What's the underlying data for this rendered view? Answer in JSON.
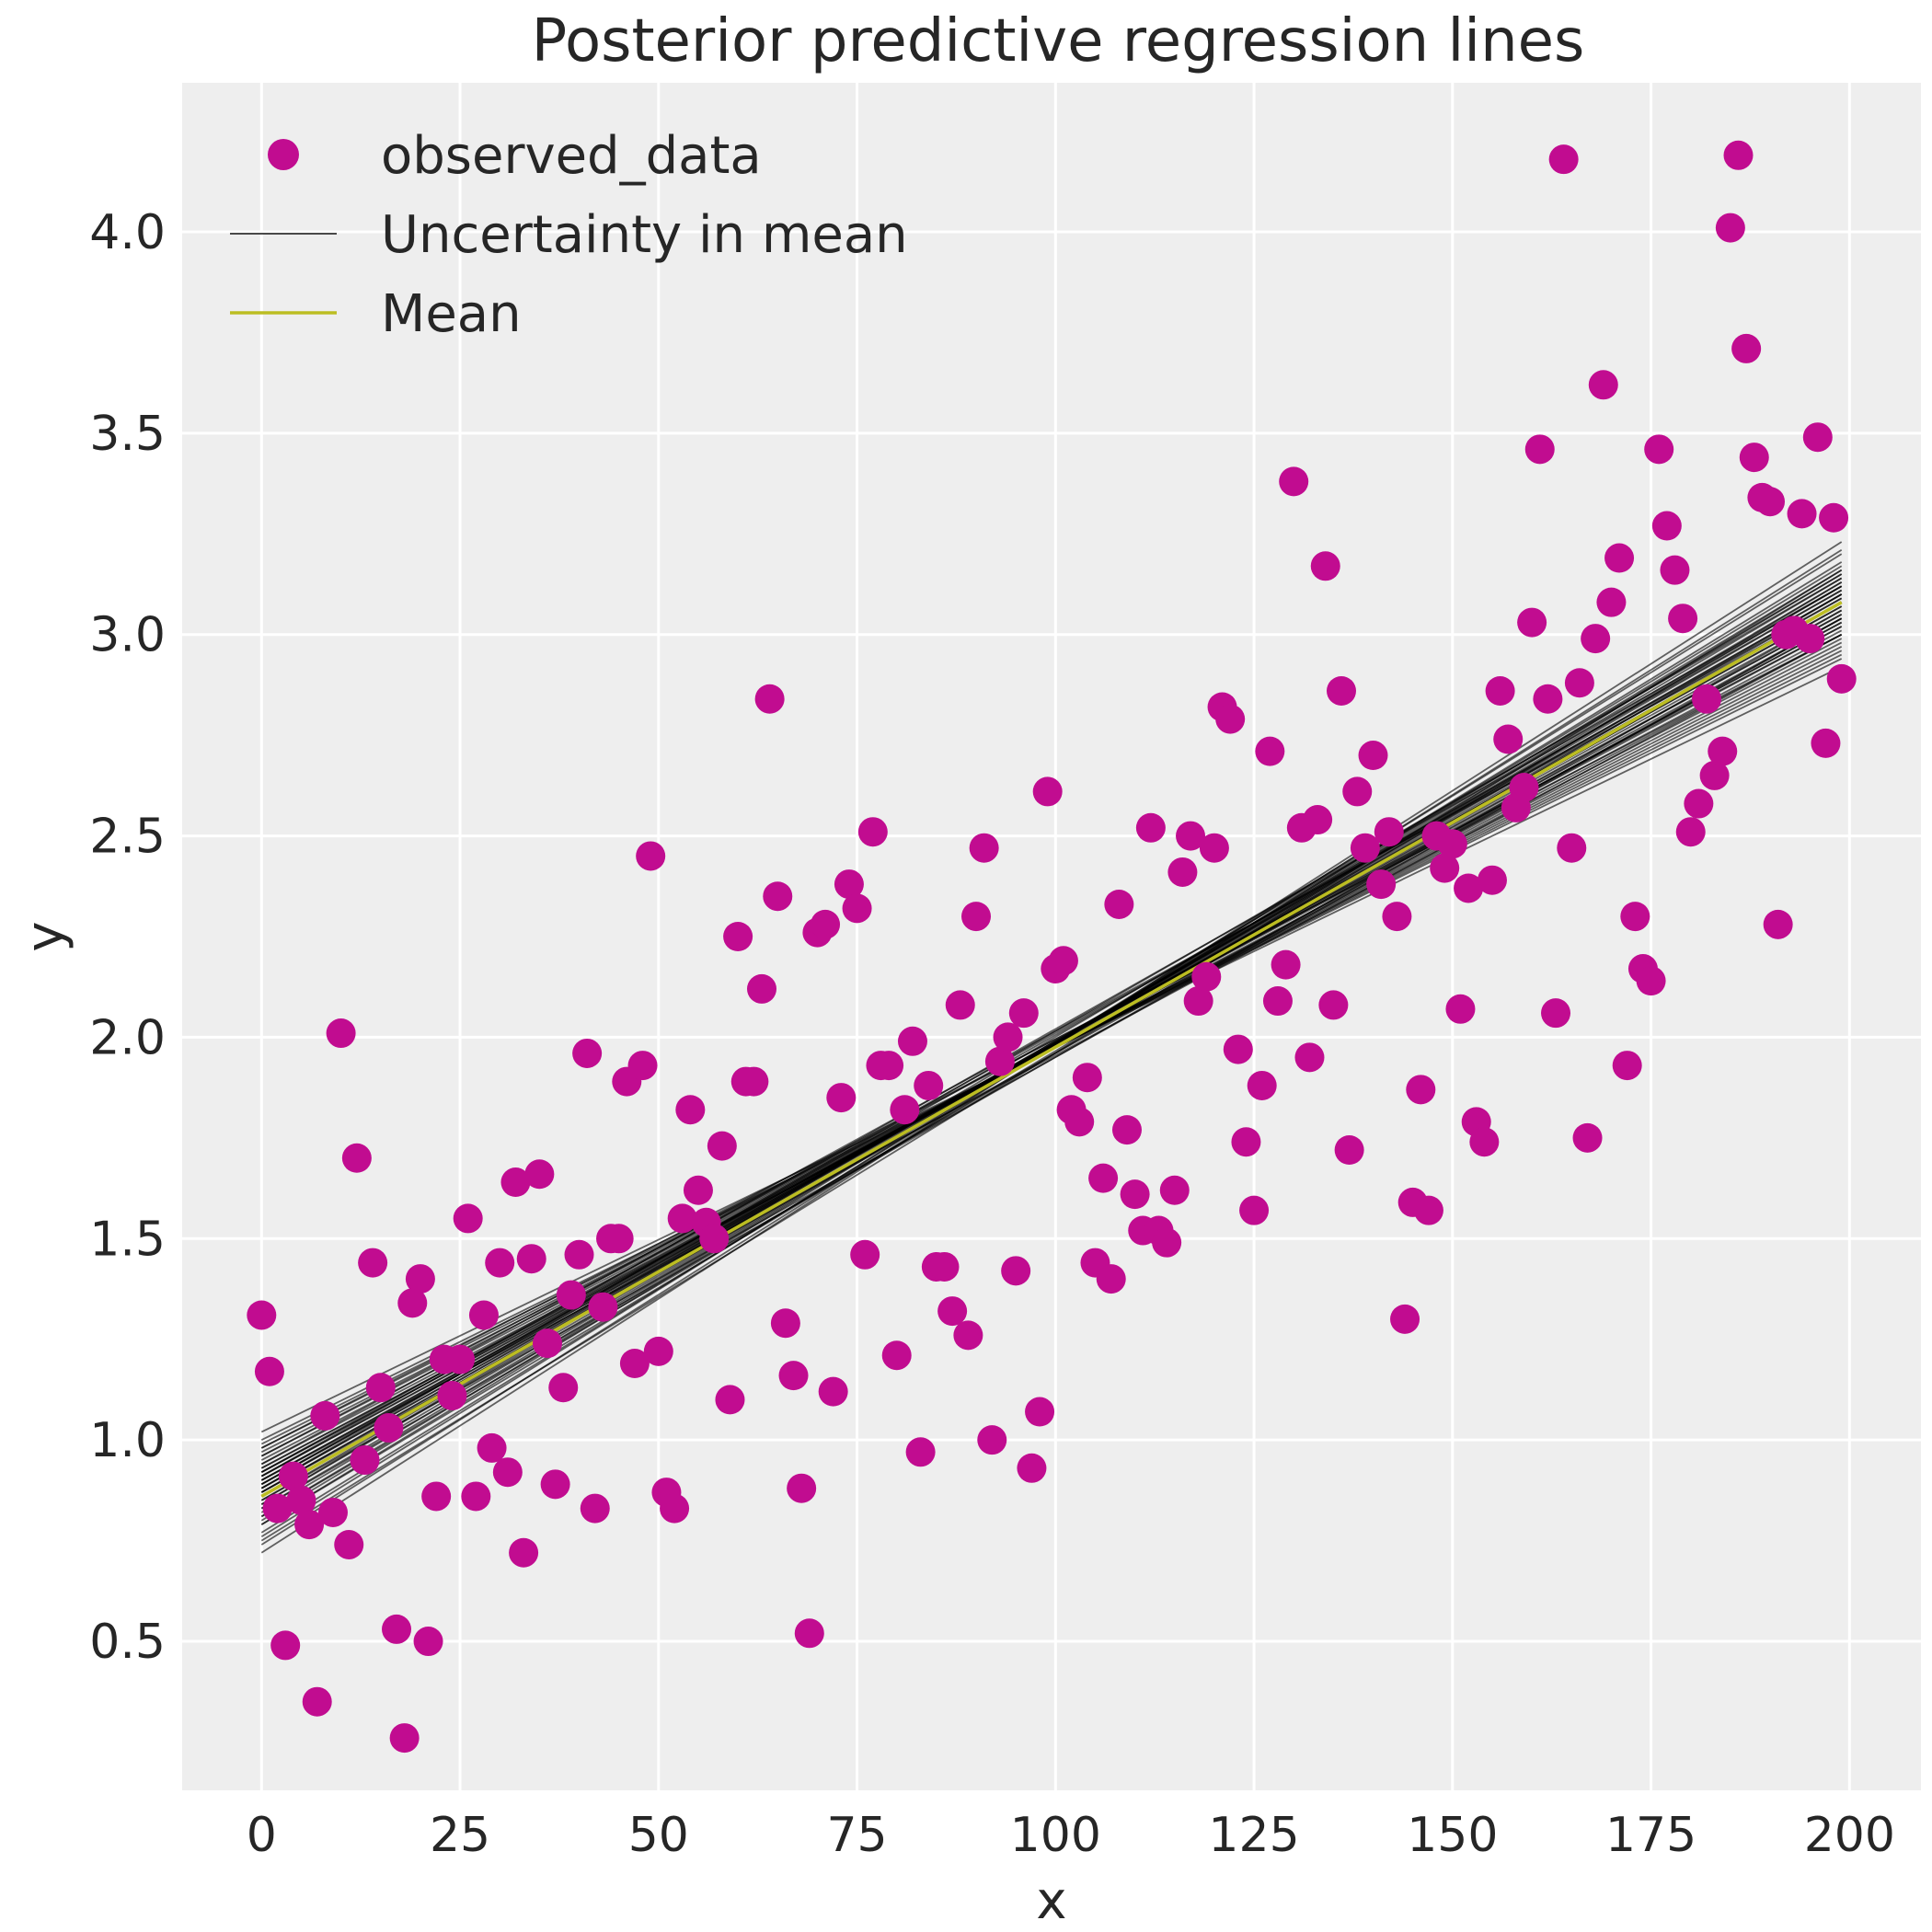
{
  "colors": {
    "background": "#eeeeee",
    "points": "#c10c90",
    "uncertainty": "#000000",
    "mean": "#bcbd22"
  },
  "chart_data": {
    "type": "scatter",
    "title": "Posterior predictive regression lines",
    "xlabel": "x",
    "ylabel": "y",
    "xlim": [
      -10,
      209
    ],
    "ylim": [
      0.13,
      4.37
    ],
    "xticks": [
      0,
      25,
      50,
      75,
      100,
      125,
      150,
      175,
      200
    ],
    "yticks": [
      0.5,
      1.0,
      1.5,
      2.0,
      2.5,
      3.0,
      3.5,
      4.0
    ],
    "xtick_labels": [
      "0",
      "25",
      "50",
      "75",
      "100",
      "125",
      "150",
      "175",
      "200"
    ],
    "ytick_labels": [
      "0.5",
      "1.0",
      "1.5",
      "2.0",
      "2.5",
      "3.0",
      "3.5",
      "4.0"
    ],
    "grid": true,
    "legend_position": "top-left",
    "legend": [
      {
        "label": "observed_data",
        "kind": "marker"
      },
      {
        "label": "Uncertainty in mean",
        "kind": "line-black"
      },
      {
        "label": "Mean",
        "kind": "line-mean"
      }
    ],
    "mean_line": {
      "x": [
        0,
        199
      ],
      "y": [
        0.86,
        3.08
      ]
    },
    "uncertainty_lines": [
      [
        0.72,
        3.23
      ],
      [
        0.74,
        3.21
      ],
      [
        0.76,
        3.2
      ],
      [
        0.77,
        3.18
      ],
      [
        0.79,
        3.17
      ],
      [
        0.8,
        3.16
      ],
      [
        0.81,
        3.15
      ],
      [
        0.82,
        3.14
      ],
      [
        0.83,
        3.13
      ],
      [
        0.84,
        3.12
      ],
      [
        0.85,
        3.12
      ],
      [
        0.86,
        3.11
      ],
      [
        0.86,
        3.1
      ],
      [
        0.87,
        3.1
      ],
      [
        0.87,
        3.09
      ],
      [
        0.88,
        3.08
      ],
      [
        0.88,
        3.08
      ],
      [
        0.89,
        3.07
      ],
      [
        0.89,
        3.07
      ],
      [
        0.9,
        3.06
      ],
      [
        0.9,
        3.05
      ],
      [
        0.91,
        3.05
      ],
      [
        0.91,
        3.04
      ],
      [
        0.92,
        3.03
      ],
      [
        0.92,
        3.03
      ],
      [
        0.93,
        3.02
      ],
      [
        0.93,
        3.01
      ],
      [
        0.94,
        3.0
      ],
      [
        0.95,
        2.99
      ],
      [
        0.96,
        2.98
      ],
      [
        0.97,
        2.97
      ],
      [
        0.98,
        2.96
      ],
      [
        0.99,
        2.95
      ],
      [
        1.0,
        2.94
      ],
      [
        1.02,
        2.92
      ],
      [
        0.79,
        3.13
      ],
      [
        0.83,
        3.06
      ],
      [
        0.85,
        3.04
      ],
      [
        0.88,
        3.14
      ],
      [
        0.91,
        3.12
      ],
      [
        0.94,
        3.08
      ],
      [
        0.96,
        3.02
      ],
      [
        0.81,
        3.1
      ],
      [
        0.87,
        3.04
      ],
      [
        0.9,
        3.0
      ],
      [
        0.75,
        3.16
      ],
      [
        0.98,
        3.0
      ],
      [
        0.84,
        3.15
      ],
      [
        0.92,
        3.09
      ],
      [
        0.89,
        3.11
      ]
    ],
    "x": [
      0,
      1,
      2,
      3,
      4,
      5,
      6,
      7,
      8,
      9,
      10,
      11,
      12,
      13,
      14,
      15,
      16,
      17,
      18,
      19,
      20,
      21,
      22,
      23,
      24,
      25,
      26,
      27,
      28,
      29,
      30,
      31,
      32,
      33,
      34,
      35,
      36,
      37,
      38,
      39,
      40,
      41,
      42,
      43,
      44,
      45,
      46,
      47,
      48,
      49,
      50,
      51,
      52,
      53,
      54,
      55,
      56,
      57,
      58,
      59,
      60,
      61,
      62,
      63,
      64,
      65,
      66,
      67,
      68,
      69,
      70,
      71,
      72,
      73,
      74,
      75,
      76,
      77,
      78,
      79,
      80,
      81,
      82,
      83,
      84,
      85,
      86,
      87,
      88,
      89,
      90,
      91,
      92,
      93,
      94,
      95,
      96,
      97,
      98,
      99,
      100,
      101,
      102,
      103,
      104,
      105,
      106,
      107,
      108,
      109,
      110,
      111,
      112,
      113,
      114,
      115,
      116,
      117,
      118,
      119,
      120,
      121,
      122,
      123,
      124,
      125,
      126,
      127,
      128,
      129,
      130,
      131,
      132,
      133,
      134,
      135,
      136,
      137,
      138,
      139,
      140,
      141,
      142,
      143,
      144,
      145,
      146,
      147,
      148,
      149,
      150,
      151,
      152,
      153,
      154,
      155,
      156,
      157,
      158,
      159,
      160,
      161,
      162,
      163,
      164,
      165,
      166,
      167,
      168,
      169,
      170,
      171,
      172,
      173,
      174,
      175,
      176,
      177,
      178,
      179,
      180,
      181,
      182,
      183,
      184,
      185,
      186,
      187,
      188,
      189,
      190,
      191,
      192,
      193,
      194,
      195,
      196,
      197,
      198,
      199
    ],
    "y": [
      1.31,
      1.17,
      0.83,
      0.49,
      0.91,
      0.85,
      0.79,
      0.35,
      1.06,
      0.82,
      2.01,
      0.74,
      1.7,
      0.95,
      1.44,
      1.13,
      1.03,
      0.53,
      0.26,
      1.34,
      1.4,
      0.5,
      0.86,
      1.2,
      1.11,
      1.2,
      1.55,
      0.86,
      1.31,
      0.98,
      1.44,
      0.92,
      1.64,
      0.72,
      1.45,
      1.66,
      1.24,
      0.89,
      1.13,
      1.36,
      1.46,
      1.96,
      0.83,
      1.33,
      1.5,
      1.5,
      1.89,
      1.19,
      1.93,
      2.45,
      1.22,
      0.87,
      0.83,
      1.55,
      1.82,
      1.62,
      1.54,
      1.5,
      1.73,
      1.1,
      2.25,
      1.89,
      1.89,
      2.12,
      2.84,
      2.35,
      1.29,
      1.16,
      0.88,
      0.52,
      2.26,
      2.28,
      1.12,
      1.85,
      2.38,
      2.32,
      1.46,
      2.51,
      1.93,
      1.93,
      1.21,
      1.82,
      1.99,
      0.97,
      1.88,
      1.43,
      1.43,
      1.32,
      2.08,
      1.26,
      2.3,
      2.47,
      1.0,
      1.94,
      2.0,
      1.42,
      2.06,
      0.93,
      1.07,
      2.61,
      2.17,
      2.19,
      1.82,
      1.79,
      1.9,
      1.44,
      1.65,
      1.4,
      2.33,
      1.77,
      1.61,
      1.52,
      2.52,
      1.52,
      1.49,
      1.62,
      2.41,
      2.5,
      2.09,
      2.15,
      2.47,
      2.82,
      2.79,
      1.97,
      1.74,
      1.57,
      1.88,
      2.71,
      2.09,
      2.18,
      3.38,
      2.52,
      1.95,
      2.54,
      3.17,
      2.08,
      2.86,
      1.72,
      2.61,
      2.47,
      2.7,
      2.38,
      2.51,
      2.3,
      1.3,
      1.59,
      1.87,
      1.57,
      2.5,
      2.42,
      2.48,
      2.07,
      2.37,
      1.79,
      1.74,
      2.39,
      2.86,
      2.74,
      2.57,
      2.62,
      3.03,
      3.46,
      2.84,
      2.06,
      4.18,
      2.47,
      2.88,
      1.75,
      2.99,
      3.62,
      3.08,
      3.19,
      1.93,
      2.3,
      2.17,
      2.14,
      3.46,
      3.27,
      3.16,
      3.04,
      2.51,
      2.58,
      2.84,
      2.65,
      2.71,
      4.01,
      4.19,
      3.71,
      3.44,
      3.34,
      3.33,
      2.28,
      3.0,
      3.01,
      3.3,
      2.99,
      3.49,
      2.73,
      3.29,
      2.89
    ]
  }
}
